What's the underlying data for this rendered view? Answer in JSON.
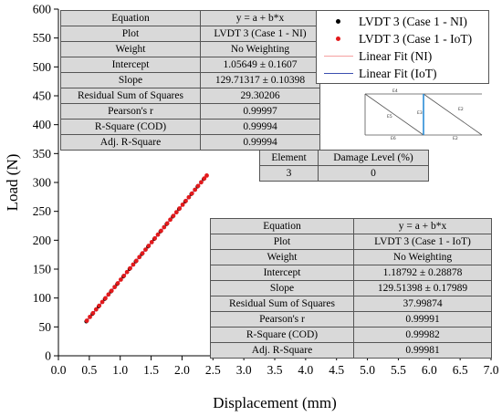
{
  "chart_data": {
    "type": "scatter",
    "xlabel": "Displacement (mm)",
    "ylabel": "Load (N)",
    "xlim": [
      0.0,
      7.0
    ],
    "ylim": [
      0,
      600
    ],
    "xticks": [
      "0.0",
      "0.5",
      "1.0",
      "1.5",
      "2.0",
      "2.5",
      "3.0",
      "3.5",
      "4.0",
      "4.5",
      "5.0",
      "5.5",
      "6.0",
      "6.5",
      "7.0"
    ],
    "yticks": [
      "0",
      "50",
      "100",
      "150",
      "200",
      "250",
      "300",
      "350",
      "400",
      "450",
      "500",
      "550",
      "600"
    ],
    "grid": false,
    "legend_position": "top-right",
    "series": [
      {
        "name": "LVDT 3 (Case 1 - NI)",
        "kind": "scatter",
        "color": "#000000",
        "x": [
          0.45,
          0.55,
          0.65,
          0.75,
          0.85,
          0.95,
          1.05,
          1.15,
          1.25,
          1.35,
          1.45,
          1.55,
          1.65,
          1.75,
          1.85,
          1.95,
          2.05,
          2.15,
          2.25,
          2.35
        ],
        "y": [
          59.4,
          72.4,
          85.3,
          98.3,
          111.3,
          124.2,
          137.2,
          150.2,
          163.2,
          176.1,
          189.1,
          202.1,
          215.1,
          228.0,
          241.0,
          254.0,
          266.9,
          279.9,
          292.9,
          305.9
        ]
      },
      {
        "name": "LVDT 3 (Case 1 - IoT)",
        "kind": "scatter",
        "color": "#e31a1c",
        "x": [
          0.46,
          0.51,
          0.56,
          0.61,
          0.66,
          0.71,
          0.76,
          0.81,
          0.86,
          0.91,
          0.96,
          1.01,
          1.06,
          1.11,
          1.16,
          1.21,
          1.26,
          1.31,
          1.36,
          1.41,
          1.46,
          1.51,
          1.56,
          1.61,
          1.66,
          1.71,
          1.76,
          1.81,
          1.86,
          1.91,
          1.96,
          2.01,
          2.06,
          2.11,
          2.16,
          2.21,
          2.26,
          2.31,
          2.36,
          2.4
        ],
        "y": [
          60.8,
          67.3,
          73.8,
          80.2,
          86.7,
          93.1,
          99.6,
          106.1,
          112.5,
          119.0,
          125.5,
          131.9,
          138.4,
          144.9,
          151.4,
          157.9,
          164.3,
          170.8,
          177.3,
          183.8,
          190.3,
          196.7,
          203.2,
          209.7,
          216.2,
          222.6,
          229.1,
          235.6,
          242.1,
          248.5,
          255.0,
          261.5,
          268.0,
          274.4,
          280.9,
          287.4,
          293.9,
          300.3,
          306.8,
          312.0
        ]
      },
      {
        "name": "Linear Fit (NI)",
        "kind": "line",
        "color": "#f5a0a0",
        "x": [
          0.45,
          2.38
        ],
        "y": [
          59.4,
          309.8
        ]
      },
      {
        "name": "Linear Fit (IoT)",
        "kind": "line",
        "color": "#3b4fb0",
        "x": [
          0.45,
          2.38
        ],
        "y": [
          59.5,
          309.4
        ]
      }
    ]
  },
  "stats_ni": {
    "rows": [
      [
        "Equation",
        "y = a + b*x"
      ],
      [
        "Plot",
        "LVDT 3 (Case 1 - NI)"
      ],
      [
        "Weight",
        "No Weighting"
      ],
      [
        "Intercept",
        "1.05649 ± 0.1607"
      ],
      [
        "Slope",
        "129.71317 ± 0.10398"
      ],
      [
        "Residual Sum of Squares",
        "29.30206"
      ],
      [
        "Pearson's r",
        "0.99997"
      ],
      [
        "R-Square (COD)",
        "0.99994"
      ],
      [
        "Adj. R-Square",
        "0.99994"
      ]
    ]
  },
  "stats_iot": {
    "rows": [
      [
        "Equation",
        "y = a + b*x"
      ],
      [
        "Plot",
        "LVDT 3 (Case 1 - IoT)"
      ],
      [
        "Weight",
        "No Weighting"
      ],
      [
        "Intercept",
        "1.18792 ± 0.28878"
      ],
      [
        "Slope",
        "129.51398 ± 0.17989"
      ],
      [
        "Residual Sum of Squares",
        "37.99874"
      ],
      [
        "Pearson's r",
        "0.99991"
      ],
      [
        "R-Square (COD)",
        "0.99982"
      ],
      [
        "Adj. R-Square",
        "0.99981"
      ]
    ]
  },
  "damage_table": {
    "header": [
      "Element",
      "Damage Level (%)"
    ],
    "row": [
      "3",
      "0"
    ]
  },
  "truss": {
    "labels": [
      "E4",
      "E5",
      "E3",
      "E2",
      "E6",
      "E2"
    ],
    "highlight_color": "#2b8cd6"
  }
}
